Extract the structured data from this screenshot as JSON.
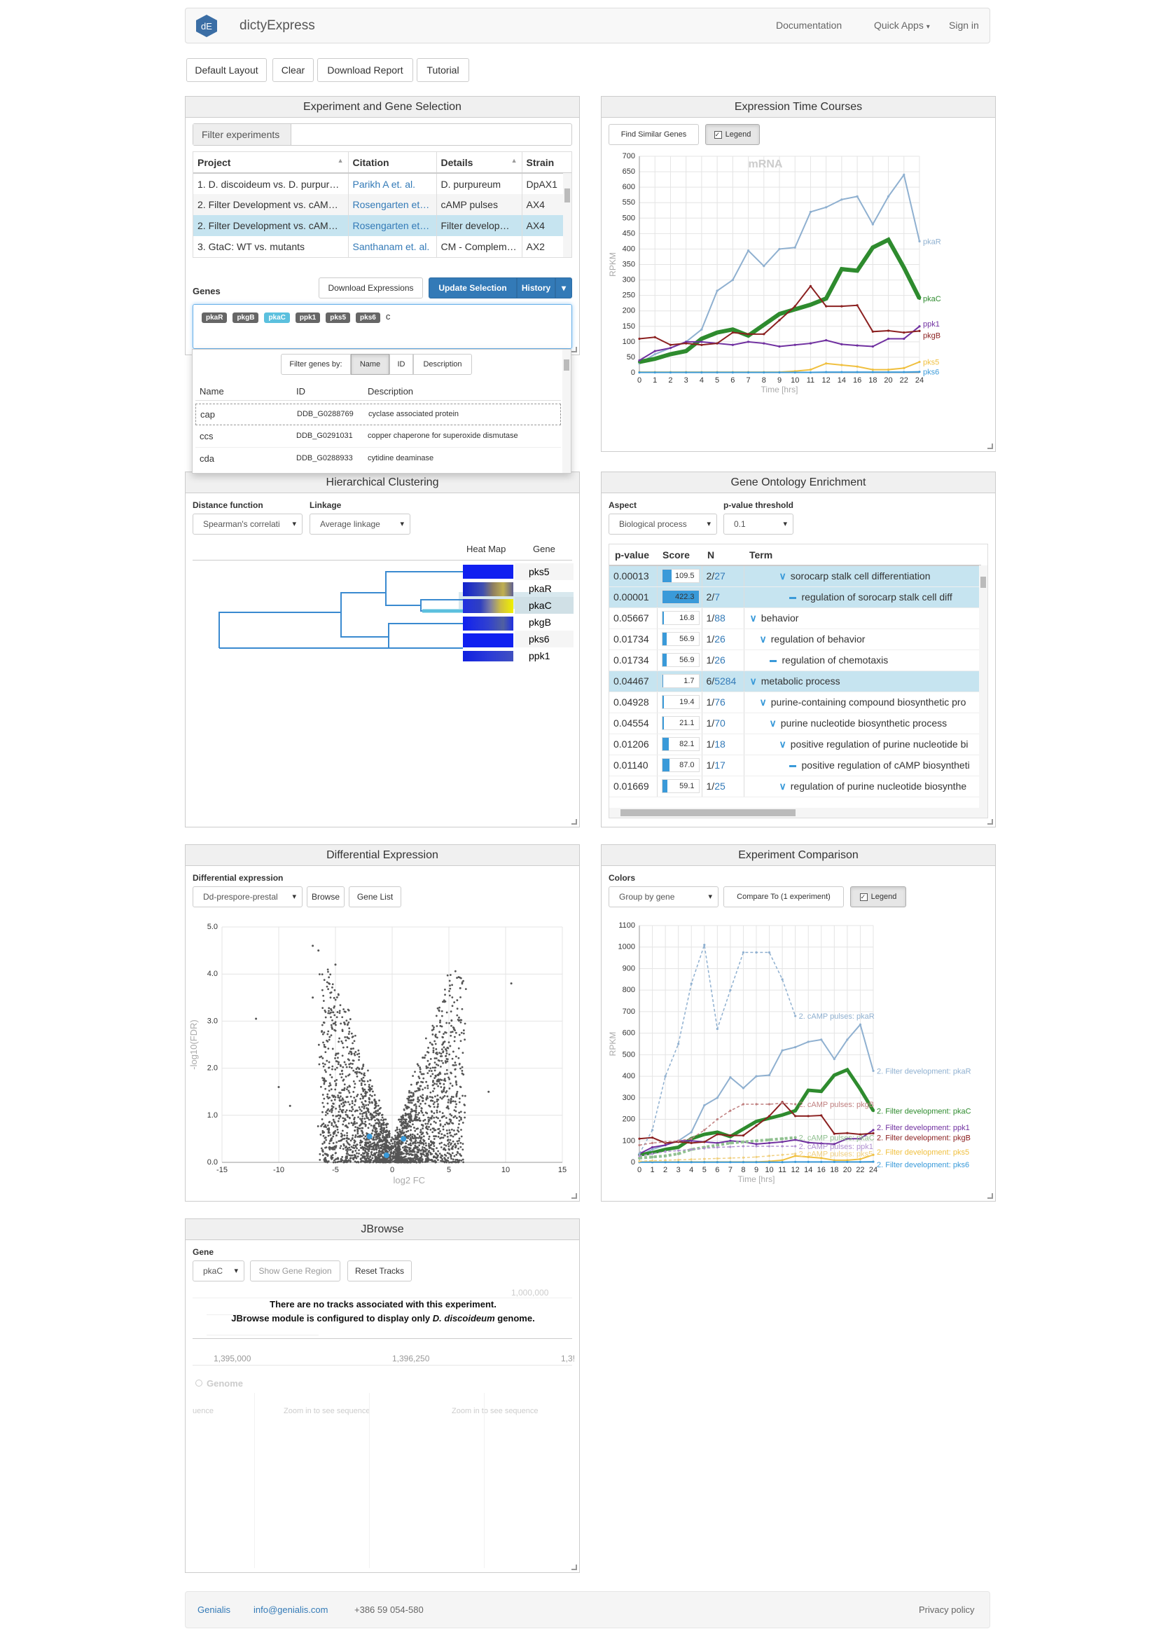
{
  "nav": {
    "logo": "dE",
    "brand": "dictyExpress",
    "links": [
      "Documentation",
      "Quick Apps",
      "Sign in"
    ]
  },
  "toolbar": {
    "buttons": [
      "Default Layout",
      "Clear",
      "Download Report",
      "Tutorial"
    ]
  },
  "exp_panel": {
    "title": "Experiment and Gene Selection",
    "filter_btn": "Filter experiments",
    "columns": [
      "Project",
      "Citation",
      "Details",
      "Strain"
    ],
    "rows": [
      [
        "1. D. discoideum vs. D. purpur…",
        "Parikh A et. al.",
        "D. purpureum",
        "DpAX1"
      ],
      [
        "2. Filter Development vs. cAM…",
        "Rosengarten et…",
        "cAMP pulses",
        "AX4"
      ],
      [
        "2. Filter Development vs. cAM…",
        "Rosengarten et…",
        "Filter develop…",
        "AX4"
      ],
      [
        "3. GtaC: WT vs. mutants",
        "Santhanam et. al.",
        "CM - Complem…",
        "AX2"
      ]
    ],
    "genes_label": "Genes",
    "download_btn": "Download Expressions",
    "update_btn": "Update Selection",
    "history_btn": "History",
    "genes": [
      "pkaR",
      "pkgB",
      "pkaC",
      "ppk1",
      "pks5",
      "pks6"
    ],
    "gene_input": "c",
    "dropdown": {
      "filter_label": "Filter genes by:",
      "filter_opts": [
        "Name",
        "ID",
        "Description"
      ],
      "cols": [
        "Name",
        "ID",
        "Description"
      ],
      "rows": [
        [
          "cap",
          "DDB_G0288769",
          "cyclase associated protein"
        ],
        [
          "ccs",
          "DDB_G0291031",
          "copper chaperone for superoxide dismutase"
        ],
        [
          "cda",
          "DDB_G0288933",
          "cytidine deaminase"
        ]
      ]
    }
  },
  "time_panel": {
    "title": "Expression Time Courses",
    "btn_similar": "Find Similar Genes",
    "btn_legend": "Legend"
  },
  "cluster_panel": {
    "title": "Hierarchical Clustering",
    "dist_label": "Distance function",
    "dist_value": "Spearman's correlati",
    "link_label": "Linkage",
    "link_value": "Average linkage",
    "heatmap_label": "Heat Map",
    "gene_label": "Gene",
    "genes": [
      "pks5",
      "pkaR",
      "pkaC",
      "pkgB",
      "pks6",
      "ppk1"
    ]
  },
  "go_panel": {
    "title": "Gene Ontology Enrichment",
    "aspect_label": "Aspect",
    "aspect_value": "Biological process",
    "pval_label": "p-value threshold",
    "pval_value": "0.1",
    "cols": [
      "p-value",
      "Score",
      "N",
      "Term"
    ],
    "rows": [
      {
        "p": "0.00013",
        "score": "109.5",
        "frac": 0.26,
        "n1": "2/",
        "n2": "27",
        "lvl": 3,
        "icon": "chev",
        "term": "sorocarp stalk cell differentiation",
        "hl": true
      },
      {
        "p": "0.00001",
        "score": "422.3",
        "frac": 1.0,
        "n1": "2/",
        "n2": "7",
        "lvl": 4,
        "icon": "dash",
        "term": "regulation of sorocarp stalk cell diff",
        "hl": true
      },
      {
        "p": "0.05667",
        "score": "16.8",
        "frac": 0.04,
        "n1": "1/",
        "n2": "88",
        "lvl": 0,
        "icon": "chev",
        "term": "behavior",
        "hl": false
      },
      {
        "p": "0.01734",
        "score": "56.9",
        "frac": 0.13,
        "n1": "1/",
        "n2": "26",
        "lvl": 1,
        "icon": "chev",
        "term": "regulation of behavior",
        "hl": false
      },
      {
        "p": "0.01734",
        "score": "56.9",
        "frac": 0.13,
        "n1": "1/",
        "n2": "26",
        "lvl": 2,
        "icon": "dash",
        "term": "regulation of chemotaxis",
        "hl": false
      },
      {
        "p": "0.04467",
        "score": "1.7",
        "frac": 0.0,
        "n1": "6/",
        "n2": "5284",
        "lvl": 0,
        "icon": "chev",
        "term": "metabolic process",
        "hl": true
      },
      {
        "p": "0.04928",
        "score": "19.4",
        "frac": 0.05,
        "n1": "1/",
        "n2": "76",
        "lvl": 1,
        "icon": "chev",
        "term": "purine-containing compound biosynthetic pro",
        "hl": false
      },
      {
        "p": "0.04554",
        "score": "21.1",
        "frac": 0.05,
        "n1": "1/",
        "n2": "70",
        "lvl": 2,
        "icon": "chev",
        "term": "purine nucleotide biosynthetic process",
        "hl": false
      },
      {
        "p": "0.01206",
        "score": "82.1",
        "frac": 0.19,
        "n1": "1/",
        "n2": "18",
        "lvl": 3,
        "icon": "chev",
        "term": "positive regulation of purine nucleotide bi",
        "hl": false
      },
      {
        "p": "0.01140",
        "score": "87.0",
        "frac": 0.2,
        "n1": "1/",
        "n2": "17",
        "lvl": 4,
        "icon": "dash",
        "term": "positive regulation of cAMP biosyntheti",
        "hl": false
      },
      {
        "p": "0.01669",
        "score": "59.1",
        "frac": 0.14,
        "n1": "1/",
        "n2": "25",
        "lvl": 3,
        "icon": "chev",
        "term": "regulation of purine nucleotide biosynthe",
        "hl": false
      }
    ]
  },
  "de_panel": {
    "title": "Differential Expression",
    "label": "Differential expression",
    "select": "Dd-prespore-prestal",
    "btn_browse": "Browse",
    "btn_genelist": "Gene List"
  },
  "cmp_panel": {
    "title": "Experiment Comparison",
    "colors_label": "Colors",
    "select": "Group by gene",
    "btn_compare": "Compare To (1 experiment)",
    "btn_legend": "Legend"
  },
  "jb_panel": {
    "title": "JBrowse",
    "gene_label": "Gene",
    "gene_value": "pkaC",
    "btn_region": "Show Gene Region",
    "btn_reset": "Reset Tracks",
    "msg1": "There are no tracks associated with this experiment.",
    "msg2a": "JBrowse module is configured to display only ",
    "msg2b": "D. discoideum",
    "msg2c": " genome.",
    "ruler": [
      "1,395,000",
      "1,396,250",
      "1,3!"
    ],
    "track": "Genome",
    "seq_hint": "Zoom in to see sequence",
    "seq_left": "uence",
    "ghost_num": "1,000,000"
  },
  "footer": {
    "links": [
      "Genialis",
      "info@genialis.com"
    ],
    "phone": "+386 59 054-580",
    "privacy": "Privacy policy"
  },
  "chart_data": [
    {
      "type": "line",
      "title": "mRNA",
      "xlabel": "Time [hrs]",
      "ylabel": "RPKM",
      "ylim": [
        0,
        700
      ],
      "x": [
        0,
        1,
        2,
        3,
        4,
        5,
        6,
        7,
        8,
        9,
        10,
        11,
        12,
        14,
        16,
        18,
        20,
        22,
        24
      ],
      "xticks": [
        "0",
        "1",
        "2",
        "3",
        "4",
        "5",
        "6",
        "7",
        "8",
        "9",
        "10",
        "11",
        "12",
        "14",
        "16",
        "18",
        "20",
        "22",
        "24"
      ],
      "yticks": [
        0,
        50,
        100,
        150,
        200,
        250,
        300,
        350,
        400,
        450,
        500,
        550,
        600,
        650,
        700
      ],
      "series": [
        {
          "name": "pkaR",
          "color": "#8fb0d0",
          "width": 2,
          "values": [
            30,
            60,
            80,
            100,
            140,
            265,
            300,
            395,
            345,
            400,
            405,
            520,
            535,
            560,
            570,
            480,
            570,
            640,
            425
          ]
        },
        {
          "name": "pkaC",
          "color": "#2e8b2e",
          "width": 6,
          "values": [
            35,
            45,
            60,
            70,
            110,
            130,
            140,
            120,
            155,
            190,
            205,
            220,
            240,
            335,
            330,
            405,
            430,
            340,
            240
          ]
        },
        {
          "name": "ppk1",
          "color": "#7030a0",
          "width": 2,
          "values": [
            40,
            70,
            80,
            100,
            100,
            95,
            90,
            100,
            95,
            85,
            90,
            95,
            105,
            92,
            88,
            85,
            110,
            110,
            150
          ]
        },
        {
          "name": "pkgB",
          "color": "#8b2020",
          "width": 2,
          "values": [
            110,
            115,
            90,
            95,
            90,
            95,
            130,
            125,
            125,
            170,
            215,
            280,
            215,
            215,
            218,
            133,
            136,
            130,
            135
          ]
        },
        {
          "name": "pks5",
          "color": "#f0c040",
          "width": 2,
          "values": [
            2,
            2,
            2,
            2,
            2,
            2,
            2,
            2,
            2,
            2,
            5,
            10,
            30,
            25,
            20,
            10,
            10,
            15,
            35
          ]
        },
        {
          "name": "pks6",
          "color": "#3a9ad9",
          "width": 2,
          "values": [
            1,
            1,
            1,
            1,
            1,
            1,
            1,
            1,
            1,
            1,
            1,
            1,
            2,
            2,
            2,
            2,
            2,
            2,
            3
          ]
        }
      ]
    },
    {
      "type": "scatter",
      "xlabel": "log2 FC",
      "ylabel": "-log10(FDR)",
      "xlim": [
        -15,
        15
      ],
      "ylim": [
        0,
        5
      ],
      "xticks": [
        "-15",
        "-10",
        "-5",
        "0",
        "5",
        "10",
        "15"
      ],
      "yticks": [
        "0.0",
        "1.0",
        "2.0",
        "3.0",
        "4.0",
        "5.0"
      ],
      "highlight": [
        [
          -2,
          0.55
        ],
        [
          1,
          0.5
        ],
        [
          -0.5,
          0.15
        ]
      ]
    },
    {
      "type": "line",
      "xlabel": "Time [hrs]",
      "ylabel": "RPKM",
      "ylim": [
        0,
        1100
      ],
      "x": [
        0,
        1,
        2,
        3,
        4,
        5,
        6,
        7,
        8,
        9,
        10,
        11,
        12,
        14,
        16,
        18,
        20,
        22,
        24
      ],
      "xticks": [
        "0",
        "1",
        "2",
        "3",
        "4",
        "5",
        "6",
        "7",
        "8",
        "9",
        "10",
        "11",
        "12",
        "14",
        "16",
        "18",
        "20",
        "22",
        "24"
      ],
      "yticks": [
        0,
        100,
        200,
        300,
        400,
        500,
        600,
        700,
        800,
        900,
        1000,
        1100
      ],
      "series": [
        {
          "name": "2. Filter development: pkaR",
          "color": "#8fb0d0",
          "width": 2,
          "x": [
            0,
            1,
            2,
            3,
            4,
            5,
            6,
            7,
            8,
            9,
            10,
            11,
            12,
            14,
            16,
            18,
            20,
            22,
            24
          ],
          "values": [
            30,
            60,
            80,
            100,
            140,
            265,
            300,
            395,
            345,
            400,
            405,
            520,
            535,
            560,
            570,
            480,
            570,
            640,
            425
          ]
        },
        {
          "name": "2. Filter development: pkaC",
          "color": "#2e8b2e",
          "width": 5,
          "x": [
            0,
            1,
            2,
            3,
            4,
            5,
            6,
            7,
            8,
            9,
            10,
            11,
            12,
            14,
            16,
            18,
            20,
            22,
            24
          ],
          "values": [
            35,
            45,
            60,
            70,
            110,
            130,
            140,
            120,
            155,
            190,
            205,
            220,
            240,
            335,
            330,
            405,
            430,
            340,
            240
          ]
        },
        {
          "name": "2. Filter development: ppk1",
          "color": "#7030a0",
          "width": 2,
          "x": [
            0,
            1,
            2,
            3,
            4,
            5,
            6,
            7,
            8,
            9,
            10,
            11,
            12,
            14,
            16,
            18,
            20,
            22,
            24
          ],
          "values": [
            40,
            70,
            80,
            100,
            100,
            95,
            90,
            100,
            95,
            85,
            90,
            95,
            105,
            92,
            88,
            85,
            110,
            110,
            150
          ]
        },
        {
          "name": "2. Filter development: pkgB",
          "color": "#8b2020",
          "width": 2,
          "x": [
            0,
            1,
            2,
            3,
            4,
            5,
            6,
            7,
            8,
            9,
            10,
            11,
            12,
            14,
            16,
            18,
            20,
            22,
            24
          ],
          "values": [
            110,
            115,
            90,
            95,
            90,
            95,
            130,
            125,
            125,
            170,
            215,
            280,
            215,
            215,
            218,
            133,
            136,
            130,
            135
          ]
        },
        {
          "name": "2. Filter development: pks5",
          "color": "#f0c040",
          "width": 2,
          "x": [
            0,
            1,
            2,
            3,
            4,
            5,
            6,
            7,
            8,
            9,
            10,
            11,
            12,
            14,
            16,
            18,
            20,
            22,
            24
          ],
          "values": [
            2,
            2,
            2,
            2,
            2,
            2,
            2,
            2,
            2,
            2,
            5,
            10,
            30,
            25,
            20,
            10,
            10,
            15,
            35
          ]
        },
        {
          "name": "2. Filter development: pks6",
          "color": "#3a9ad9",
          "width": 2,
          "x": [
            0,
            1,
            2,
            3,
            4,
            5,
            6,
            7,
            8,
            9,
            10,
            11,
            12,
            14,
            16,
            18,
            20,
            22,
            24
          ],
          "values": [
            1,
            1,
            1,
            1,
            1,
            1,
            1,
            1,
            1,
            1,
            1,
            1,
            2,
            2,
            2,
            2,
            2,
            2,
            3
          ]
        },
        {
          "name": "2. cAMP pulses: pkaR",
          "color": "#8fb0d0",
          "width": 1.5,
          "dash": true,
          "x": [
            0,
            1,
            2,
            3,
            4,
            5,
            6,
            7,
            8,
            9,
            10,
            11,
            12
          ],
          "values": [
            40,
            150,
            400,
            550,
            830,
            1010,
            620,
            800,
            975,
            975,
            975,
            850,
            680
          ]
        },
        {
          "name": "2. cAMP pulses: pkgB",
          "color": "#c08080",
          "width": 1.5,
          "dash": true,
          "x": [
            0,
            1,
            2,
            3,
            4,
            5,
            6,
            7,
            8,
            9,
            10,
            11,
            12
          ],
          "values": [
            80,
            90,
            95,
            100,
            110,
            150,
            200,
            240,
            270,
            270,
            270,
            275,
            270
          ]
        },
        {
          "name": "2. cAMP pulses: pkaC",
          "color": "#90c090",
          "width": 4,
          "dash": true,
          "x": [
            0,
            1,
            2,
            3,
            4,
            5,
            6,
            7,
            8,
            9,
            10,
            11,
            12
          ],
          "values": [
            20,
            25,
            30,
            40,
            60,
            70,
            80,
            90,
            95,
            100,
            105,
            110,
            115
          ]
        },
        {
          "name": "2. cAMP pulses: ppk1",
          "color": "#b090d0",
          "width": 1.5,
          "dash": true,
          "x": [
            0,
            1,
            2,
            3,
            4,
            5,
            6,
            7,
            8,
            9,
            10,
            11,
            12
          ],
          "values": [
            30,
            40,
            50,
            55,
            60,
            65,
            70,
            72,
            75,
            75,
            75,
            75,
            75
          ]
        },
        {
          "name": "2. cAMP pulses: pks5",
          "color": "#f0d080",
          "width": 1.5,
          "dash": true,
          "x": [
            0,
            1,
            2,
            3,
            4,
            5,
            6,
            7,
            8,
            9,
            10,
            11,
            12
          ],
          "values": [
            5,
            8,
            10,
            12,
            14,
            16,
            18,
            20,
            22,
            25,
            30,
            35,
            40
          ]
        }
      ]
    }
  ]
}
